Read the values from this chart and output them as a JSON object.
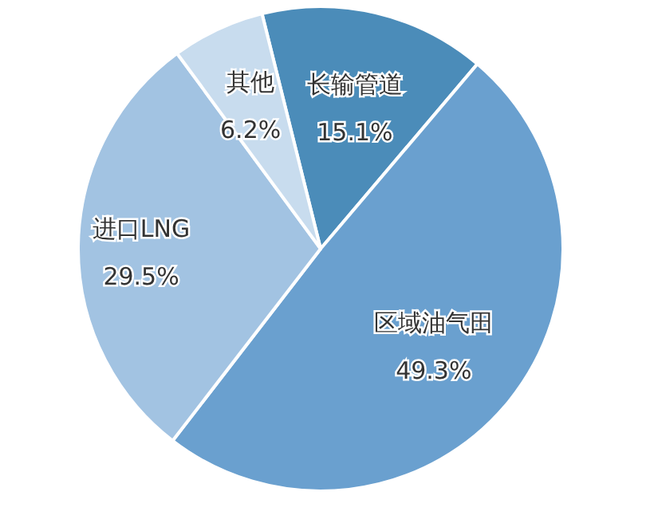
{
  "chart_data": {
    "type": "pie",
    "categories": [
      "长输管道",
      "区域油气田",
      "进口LNG",
      "其他"
    ],
    "values": [
      15.1,
      49.3,
      29.5,
      6.2
    ],
    "value_labels": [
      "15.1%",
      "49.3%",
      "29.5%",
      "6.2%"
    ],
    "colors": [
      "#4b8cb9",
      "#6aa0cf",
      "#a2c3e2",
      "#c8dcee"
    ],
    "legend": false
  }
}
